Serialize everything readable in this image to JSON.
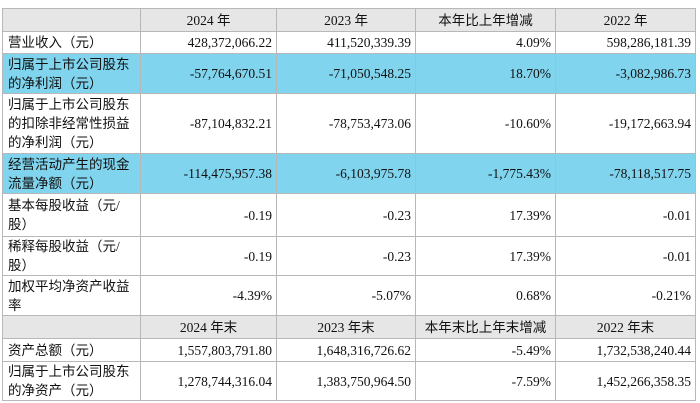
{
  "table": {
    "header": [
      "2024 年",
      "2023 年",
      "本年比上年增减",
      "2022 年"
    ],
    "rows": [
      [
        "营业收入（元）",
        "428,372,066.22",
        "411,520,339.39",
        "4.09%",
        "598,286,181.39"
      ],
      [
        "归属于上市公司股东的净利润（元）",
        "-57,764,670.51",
        "-71,050,548.25",
        "18.70%",
        "-3,082,986.73"
      ],
      [
        "归属于上市公司股东的扣除非经常性损益的净利润（元）",
        "-87,104,832.21",
        "-78,753,473.06",
        "-10.60%",
        "-19,172,663.94"
      ],
      [
        "经营活动产生的现金流量净额（元）",
        "-114,475,957.38",
        "-6,103,975.78",
        "-1,775.43%",
        "-78,118,517.75"
      ],
      [
        "基本每股收益（元/股）",
        "-0.19",
        "-0.23",
        "17.39%",
        "-0.01"
      ],
      [
        "稀释每股收益（元/股）",
        "-0.19",
        "-0.23",
        "17.39%",
        "-0.01"
      ],
      [
        "加权平均净资产收益率",
        "-4.39%",
        "-5.07%",
        "0.68%",
        "-0.21%"
      ]
    ],
    "header2": [
      "2024 年末",
      "2023 年末",
      "本年末比上年末增减",
      "2022 年末"
    ],
    "rows2": [
      [
        "资产总额（元）",
        "1,557,803,791.80",
        "1,648,316,726.62",
        "-5.49%",
        "1,732,538,240.44"
      ],
      [
        "归属于上市公司股东的净资产（元）",
        "1,278,744,316.04",
        "1,383,750,964.50",
        "-7.59%",
        "1,452,266,358.35"
      ]
    ]
  }
}
